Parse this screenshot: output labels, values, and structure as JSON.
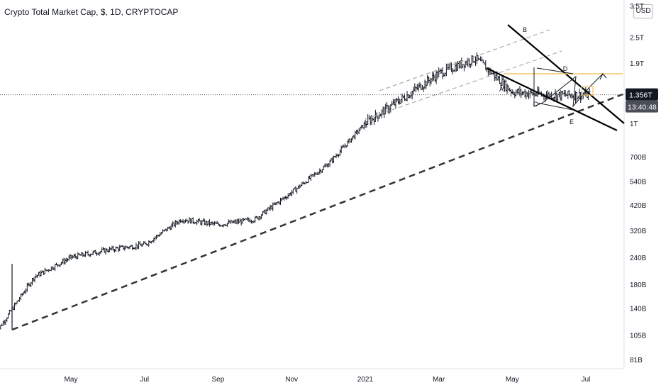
{
  "chart_data": {
    "type": "line",
    "title": "Crypto Total Market Cap, $, 1D, CRYPTOCAP",
    "currency": "USD",
    "y_scale": "log",
    "x_tick_labels": [
      "May",
      "Jul",
      "Sep",
      "Nov",
      "2021",
      "Mar",
      "May",
      "Jul"
    ],
    "y_tick_labels": [
      "3.5T",
      "2.5T",
      "1.9T",
      "1T",
      "700B",
      "540B",
      "420B",
      "320B",
      "240B",
      "180B",
      "140B",
      "105B",
      "81B"
    ],
    "y_tick_values": [
      3500000000000.0,
      2500000000000.0,
      1900000000000.0,
      1000000000000.0,
      700000000000.0,
      540000000000.0,
      420000000000.0,
      320000000000.0,
      240000000000.0,
      180000000000.0,
      140000000000.0,
      105000000000.0,
      81000000000.0
    ],
    "current_price_label": "1.356T",
    "current_price": 1356000000000.0,
    "countdown_label": "13:40:48",
    "pattern_points": [
      "A",
      "B",
      "C",
      "D",
      "E"
    ],
    "x": [
      "2020-03",
      "2020-04",
      "2020-05",
      "2020-06",
      "2020-07",
      "2020-08",
      "2020-09",
      "2020-10",
      "2020-11",
      "2020-12",
      "2021-01",
      "2021-02",
      "2021-03",
      "2021-04",
      "2021-05",
      "2021-06",
      "2021-07"
    ],
    "series": [
      {
        "values": [
          110000000000.0,
          195000000000.0,
          240000000000.0,
          260000000000.0,
          275000000000.0,
          360000000000.0,
          340000000000.0,
          360000000000.0,
          480000000000.0,
          650000000000.0,
          1000000000000.0,
          1300000000000.0,
          1700000000000.0,
          2000000000000.0,
          1400000000000.0,
          1350000000000.0,
          1356000000000.0
        ]
      }
    ]
  },
  "colors": {
    "candle": "#131722",
    "trendline": "#000000",
    "channel": "#9e9e9e",
    "horizontal_level": "#f7c565",
    "grid": "#f0f3fa",
    "price_tag": "#131722",
    "countdown_tag": "#4a4e57"
  }
}
